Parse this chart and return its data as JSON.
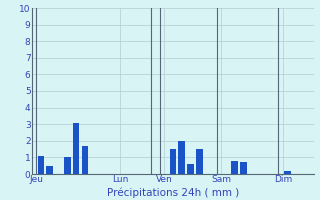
{
  "bar_positions": [
    1,
    2,
    4,
    5,
    6,
    16,
    17,
    18,
    19,
    23,
    24,
    29
  ],
  "bar_heights": [
    1.1,
    0.5,
    1.0,
    3.1,
    1.7,
    1.5,
    2.0,
    0.6,
    1.5,
    0.8,
    0.7,
    0.2
  ],
  "bar_color": "#1a52c8",
  "background_color": "#d8f4f4",
  "grid_color": "#b0cccc",
  "separator_color": "#556677",
  "xlabel": "Précipitations 24h ( mm )",
  "ylim": [
    0,
    10
  ],
  "yticks": [
    0,
    1,
    2,
    3,
    4,
    5,
    6,
    7,
    8,
    9,
    10
  ],
  "xlim": [
    0,
    32
  ],
  "day_tick_positions": [
    0.5,
    10,
    15,
    21.5,
    28.5
  ],
  "day_labels": [
    "Jeu",
    "Lun",
    "Ven",
    "Sam",
    "Dim"
  ],
  "separator_positions": [
    0.5,
    13.5,
    14.5,
    21.0,
    28.0
  ],
  "total_slots": 32,
  "bar_width": 0.75
}
